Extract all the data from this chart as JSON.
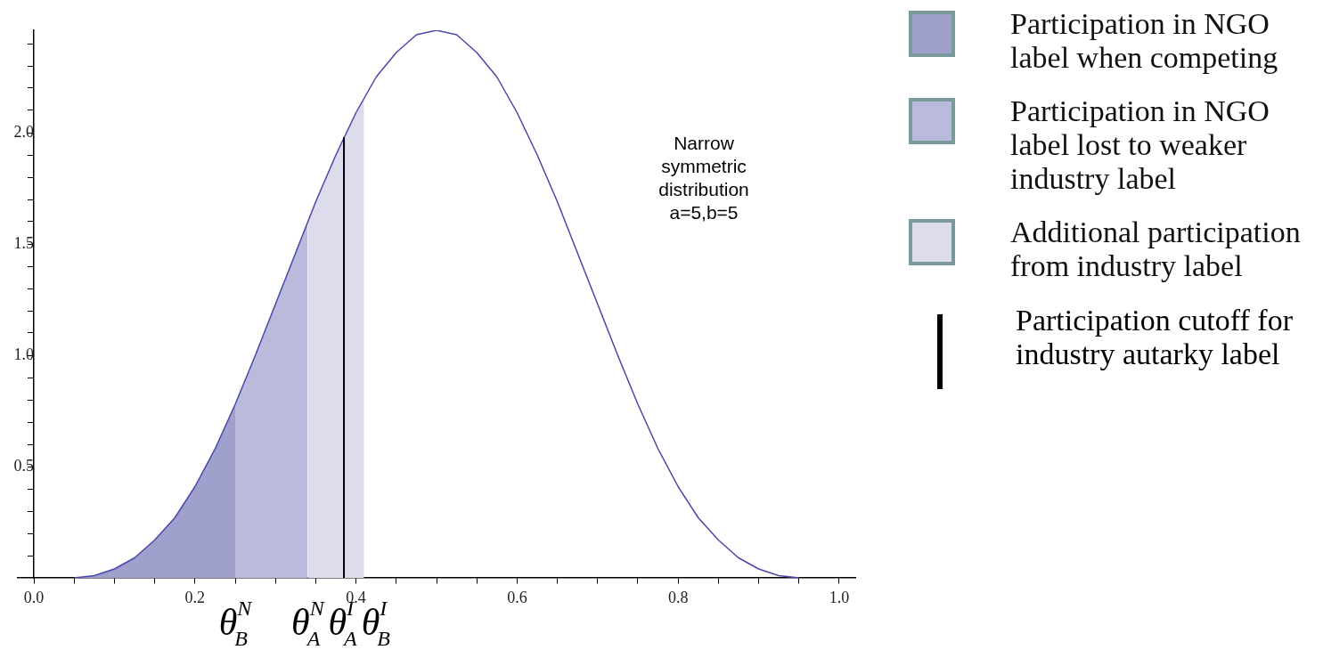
{
  "chart_data": {
    "type": "line",
    "xlim": [
      -0.02,
      1.02
    ],
    "ylim": [
      0,
      2.46
    ],
    "xticks": [
      {
        "value": 0,
        "label": "0.0"
      },
      {
        "value": 0.05,
        "label": null
      },
      {
        "value": 0.1,
        "label": null
      },
      {
        "value": 0.15,
        "label": null
      },
      {
        "value": 0.2,
        "label": "0.2"
      },
      {
        "value": 0.25,
        "label": null
      },
      {
        "value": 0.3,
        "label": null
      },
      {
        "value": 0.35,
        "label": null
      },
      {
        "value": 0.4,
        "label": "0.4"
      },
      {
        "value": 0.45,
        "label": null
      },
      {
        "value": 0.5,
        "label": null
      },
      {
        "value": 0.55,
        "label": null
      },
      {
        "value": 0.6,
        "label": "0.6"
      },
      {
        "value": 0.65,
        "label": null
      },
      {
        "value": 0.7,
        "label": null
      },
      {
        "value": 0.75,
        "label": null
      },
      {
        "value": 0.8,
        "label": "0.8"
      },
      {
        "value": 0.85,
        "label": null
      },
      {
        "value": 0.9,
        "label": null
      },
      {
        "value": 0.95,
        "label": null
      },
      {
        "value": 1,
        "label": "1.0"
      }
    ],
    "yticks": [
      {
        "value": 0.1,
        "label": null
      },
      {
        "value": 0.2,
        "label": null
      },
      {
        "value": 0.3,
        "label": null
      },
      {
        "value": 0.4,
        "label": null
      },
      {
        "value": 0.5,
        "label": "0.5"
      },
      {
        "value": 0.6,
        "label": null
      },
      {
        "value": 0.7,
        "label": null
      },
      {
        "value": 0.8,
        "label": null
      },
      {
        "value": 0.9,
        "label": null
      },
      {
        "value": 1,
        "label": "1.0"
      },
      {
        "value": 1.1,
        "label": null
      },
      {
        "value": 1.2,
        "label": null
      },
      {
        "value": 1.3,
        "label": null
      },
      {
        "value": 1.4,
        "label": null
      },
      {
        "value": 1.5,
        "label": "1.5"
      },
      {
        "value": 1.6,
        "label": null
      },
      {
        "value": 1.7,
        "label": null
      },
      {
        "value": 1.8,
        "label": null
      },
      {
        "value": 1.9,
        "label": null
      },
      {
        "value": 2,
        "label": "2.0"
      },
      {
        "value": 2.1,
        "label": null
      },
      {
        "value": 2.2,
        "label": null
      },
      {
        "value": 2.3,
        "label": null
      },
      {
        "value": 2.4,
        "label": null
      }
    ],
    "grid": false,
    "legend": "right",
    "series": [
      {
        "type": "area",
        "name": "Participation in NGO label when competing",
        "color": "#a0a0cc",
        "x": [
          0.05,
          0.075,
          0.1,
          0.125,
          0.15,
          0.175,
          0.2,
          0.225,
          0.25
        ],
        "values": [
          0.0,
          0.01,
          0.04,
          0.09,
          0.17,
          0.27,
          0.41,
          0.58,
          0.78
        ]
      },
      {
        "type": "area",
        "name": "Participation in NGO label lost to weaker industry label",
        "color": "#babadc",
        "x": [
          0.25,
          0.275,
          0.3,
          0.325,
          0.34
        ],
        "values": [
          0.78,
          1.0,
          1.23,
          1.46,
          1.6
        ]
      },
      {
        "type": "area",
        "name": "Additional participation from industry label",
        "color": "#dcdcec",
        "x": [
          0.34,
          0.35,
          0.375,
          0.4,
          0.41
        ],
        "values": [
          1.6,
          1.69,
          1.9,
          2.09,
          2.16
        ]
      },
      {
        "type": "line",
        "color": "#4848a8",
        "x": [
          0.05,
          0.075,
          0.1,
          0.125,
          0.15,
          0.175,
          0.2,
          0.225,
          0.25,
          0.275,
          0.3,
          0.325,
          0.35,
          0.375,
          0.4,
          0.425,
          0.45,
          0.475,
          0.5,
          0.525,
          0.55,
          0.575,
          0.6,
          0.625,
          0.65,
          0.675,
          0.7,
          0.725,
          0.75,
          0.775,
          0.8,
          0.825,
          0.85,
          0.875,
          0.9,
          0.925,
          0.95
        ],
        "values": [
          0.0,
          0.01,
          0.04,
          0.09,
          0.17,
          0.27,
          0.41,
          0.58,
          0.78,
          1.0,
          1.23,
          1.46,
          1.69,
          1.9,
          2.09,
          2.25,
          2.36,
          2.44,
          2.46,
          2.44,
          2.36,
          2.25,
          2.09,
          1.9,
          1.69,
          1.46,
          1.23,
          1.0,
          0.78,
          0.58,
          0.41,
          0.27,
          0.17,
          0.09,
          0.04,
          0.01,
          0.0
        ]
      },
      {
        "type": "line",
        "name": "Participation cutoff for industry autarky label",
        "color": "#000000",
        "x": [
          0.385,
          0.385
        ],
        "values": [
          0,
          1.98
        ]
      }
    ],
    "annotations": [
      "Narrow symmetric distribution a=5,b=5",
      {
        "text": "θ$^{N}$$_{B}$",
        "x": 0.25,
        "y": 0
      },
      {
        "text": "θ$^{N}$$_{A}$",
        "x": 0.34,
        "y": 0
      },
      {
        "text": "θ$^{I}$$_{A}$",
        "x": 0.385,
        "y": 0
      },
      {
        "text": "θ$^{I}$$_{B}$",
        "x": 0.41,
        "y": 0
      }
    ]
  }
}
